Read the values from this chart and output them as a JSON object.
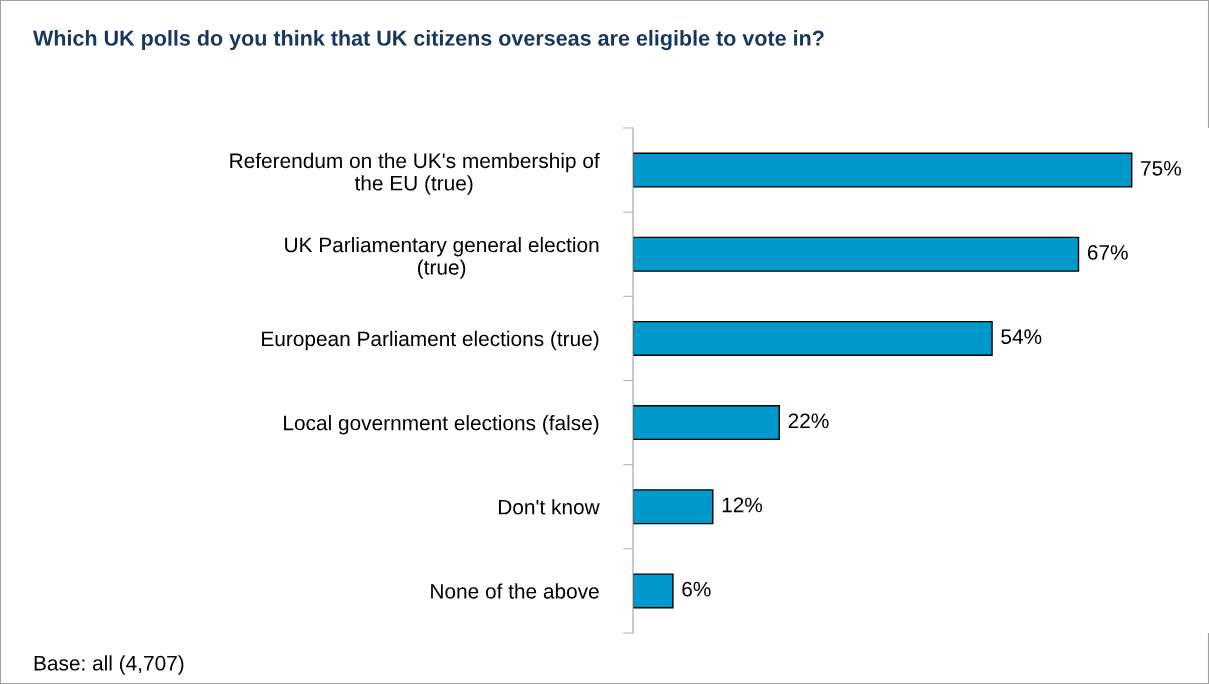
{
  "chart_data": {
    "type": "bar",
    "orientation": "horizontal",
    "title": "Which UK polls do you think that UK citizens overseas are eligible to vote in?",
    "categories": [
      "Referendum on the UK's membership of\nthe EU (true)",
      "UK Parliamentary general election\n(true)",
      "European Parliament elections (true)",
      "Local government elections (false)",
      "Don't know",
      "None of the above"
    ],
    "values": [
      75,
      67,
      54,
      22,
      12,
      6
    ],
    "value_labels": [
      "75%",
      "67%",
      "54%",
      "22%",
      "12%",
      "6%"
    ],
    "color": "#0099cc",
    "tick_labels": "y",
    "grid": false,
    "legend": false,
    "annotations": [
      "Base: all (4,707)"
    ]
  }
}
